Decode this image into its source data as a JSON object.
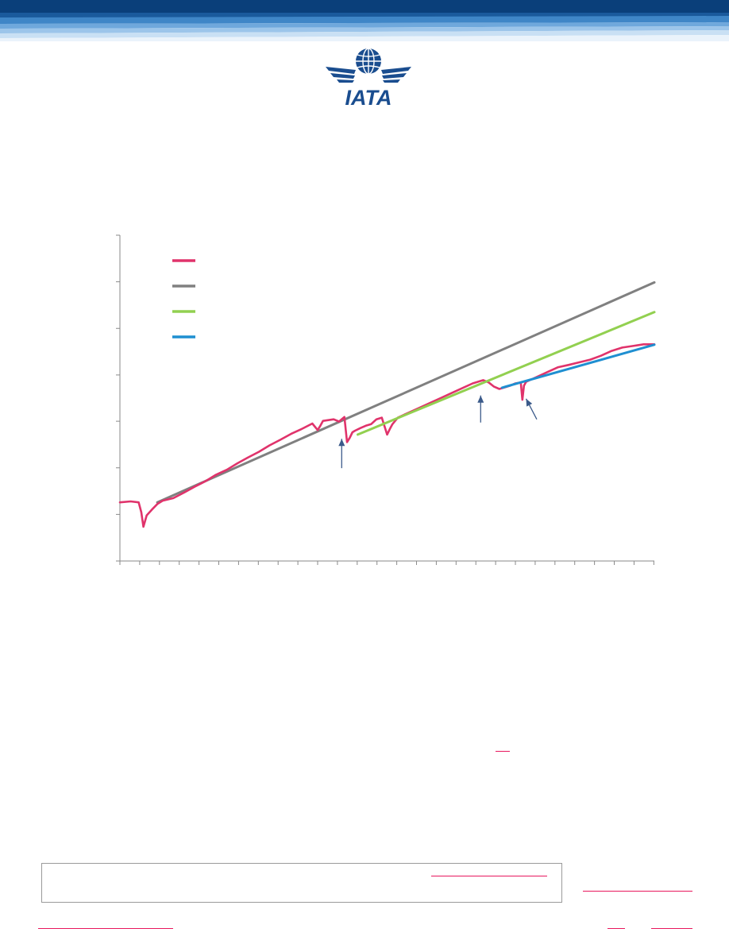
{
  "header": {
    "logo_text": "IATA"
  },
  "chart_data": {
    "type": "line",
    "title": "",
    "xlabel": "",
    "ylabel": "",
    "tick_labels_visible": false,
    "grid": false,
    "legend_placement": "top-left",
    "colors": {
      "actual": "#e0336b",
      "trend_a": "#808080",
      "trend_b": "#92d050",
      "trend_c": "#1f8fd1",
      "arrow": "#3b5a8a",
      "axis": "#8a8a8a"
    },
    "x_range": [
      0,
      100
    ],
    "y_range": [
      0,
      100
    ],
    "series": [
      {
        "key": "actual",
        "x": [
          0,
          2,
          3.5,
          4,
          4.4,
          5,
          6,
          7,
          8,
          10,
          12,
          14,
          16,
          18,
          20,
          22,
          24,
          26,
          28,
          30,
          32,
          34,
          36,
          37,
          37.5,
          38,
          40,
          41,
          42,
          42.5,
          43,
          43.5,
          44,
          45,
          46,
          47,
          48,
          49,
          50,
          50.5,
          51,
          52,
          54,
          56,
          58,
          60,
          62,
          64,
          66,
          68,
          69,
          70,
          71,
          72,
          73,
          74,
          75,
          75.3,
          75.6,
          76,
          78,
          80,
          82,
          84,
          86,
          88,
          90,
          92,
          94,
          96,
          98,
          100
        ],
        "y": [
          18,
          18.3,
          18,
          15,
          10.5,
          14,
          15.8,
          17.5,
          18.5,
          19.3,
          21,
          22.8,
          24.5,
          26.5,
          28,
          30,
          31.8,
          33.5,
          35.5,
          37.2,
          39,
          40.5,
          42.2,
          40.2,
          41.5,
          43,
          43.5,
          42.8,
          44.2,
          36.5,
          37.8,
          39.5,
          40,
          40.8,
          41.5,
          42,
          43.5,
          44,
          38.8,
          40.5,
          42,
          44,
          45.5,
          47,
          48.5,
          50,
          51.5,
          53,
          54.5,
          55.5,
          54.8,
          53.5,
          52.8,
          53.3,
          53.8,
          54.5,
          54.8,
          49.5,
          53.8,
          55,
          56.5,
          58,
          59.5,
          60.2,
          61,
          61.8,
          63,
          64.5,
          65.5,
          66,
          66.5,
          66.5
        ]
      },
      {
        "key": "trend_a",
        "x": [
          7,
          100
        ],
        "y": [
          18,
          85.5
        ]
      },
      {
        "key": "trend_b",
        "x": [
          44.5,
          100
        ],
        "y": [
          38.8,
          76.4
        ]
      },
      {
        "key": "trend_c",
        "x": [
          71.5,
          100
        ],
        "y": [
          53.2,
          66.4
        ]
      }
    ],
    "annotations": [
      {
        "type": "arrow",
        "from": [
          41.5,
          28.5
        ],
        "to": [
          41.5,
          37.5
        ]
      },
      {
        "type": "arrow",
        "from": [
          67.5,
          42.5
        ],
        "to": [
          67.5,
          50.8
        ]
      },
      {
        "type": "arrow",
        "from": [
          78,
          43.5
        ],
        "to": [
          76,
          49.8
        ]
      }
    ],
    "x_ticks": [
      0,
      3.7,
      7.4,
      11.1,
      14.8,
      18.5,
      22.2,
      25.9,
      29.6,
      33.3,
      37,
      40.7,
      44.4,
      48.1,
      51.8,
      55.5,
      59.2,
      62.9,
      66.6,
      70.3,
      74,
      77.7,
      81.4,
      85.1,
      88.8,
      92.5,
      96.2,
      99.9
    ],
    "y_ticks": [
      0,
      14.3,
      28.6,
      42.9,
      57.1,
      71.4,
      85.7,
      100
    ]
  }
}
